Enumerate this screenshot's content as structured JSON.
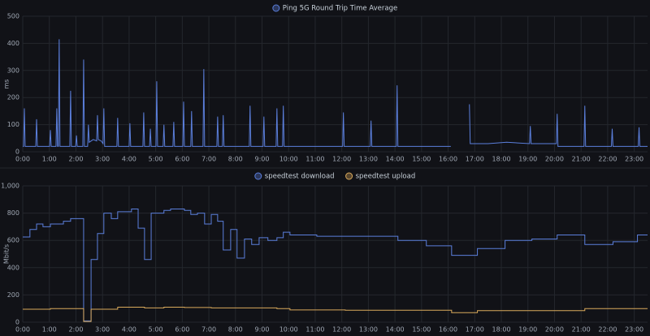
{
  "chart_data": [
    {
      "type": "line",
      "ylabel": "ms",
      "grid": true,
      "legend": "top",
      "xlim": [
        0,
        23.5
      ],
      "ylim": [
        0,
        500
      ],
      "yticks": [
        0,
        100,
        200,
        300,
        400,
        500
      ],
      "xticks": [
        {
          "value": 0,
          "label": "0:00"
        },
        {
          "value": 1,
          "label": "1:00"
        },
        {
          "value": 2,
          "label": "2:00"
        },
        {
          "value": 3,
          "label": "3:00"
        },
        {
          "value": 4,
          "label": "4:00"
        },
        {
          "value": 5,
          "label": "5:00"
        },
        {
          "value": 6,
          "label": "6:00"
        },
        {
          "value": 7,
          "label": "7:00"
        },
        {
          "value": 8,
          "label": "8:00"
        },
        {
          "value": 9,
          "label": "9:00"
        },
        {
          "value": 10,
          "label": "10:00"
        },
        {
          "value": 11,
          "label": "11:00"
        },
        {
          "value": 12,
          "label": "12:00"
        },
        {
          "value": 13,
          "label": "13:00"
        },
        {
          "value": 14,
          "label": "14:00"
        },
        {
          "value": 15,
          "label": "15:00"
        },
        {
          "value": 16,
          "label": "16:00"
        },
        {
          "value": 17,
          "label": "17:00"
        },
        {
          "value": 18,
          "label": "18:00"
        },
        {
          "value": 19,
          "label": "19:00"
        },
        {
          "value": 20,
          "label": "20:00"
        },
        {
          "value": 21,
          "label": "21:00"
        },
        {
          "value": 22,
          "label": "22:00"
        },
        {
          "value": 23,
          "label": "23:00"
        }
      ],
      "series": [
        {
          "name": "Ping 5G Round Trip Time Average",
          "color": "#5b7fdc",
          "x": [
            0,
            0.03,
            0.06,
            0.09,
            0.49,
            0.52,
            0.55,
            1.01,
            1.04,
            1.07,
            1.25,
            1.28,
            1.31,
            1.34,
            1.37,
            1.4,
            1.77,
            1.8,
            1.83,
            1.99,
            2.02,
            2.05,
            2.26,
            2.29,
            2.32,
            2.44,
            2.47,
            2.5,
            2.65,
            2.78,
            2.81,
            2.84,
            2.95,
            3.02,
            3.05,
            3.08,
            3.54,
            3.57,
            3.6,
            4.0,
            4.03,
            4.06,
            4.52,
            4.55,
            4.58,
            4.77,
            4.8,
            4.83,
            5.01,
            5.04,
            5.07,
            5.28,
            5.31,
            5.34,
            5.65,
            5.68,
            5.71,
            6.02,
            6.05,
            6.08,
            6.32,
            6.35,
            6.38,
            6.78,
            6.81,
            6.84,
            7.3,
            7.33,
            7.36,
            7.51,
            7.54,
            7.57,
            8.52,
            8.55,
            8.58,
            9.04,
            9.07,
            9.1,
            9.53,
            9.56,
            9.59,
            9.77,
            9.8,
            9.83,
            12.03,
            12.06,
            12.09,
            13.07,
            13.1,
            13.13,
            14.05,
            14.08,
            14.11,
            16.1,
            16.4,
            16.8,
            16.83,
            17.5,
            18.2,
            19.06,
            19.09,
            19.12,
            20.07,
            20.1,
            20.13,
            21.11,
            21.14,
            21.17,
            22.14,
            22.17,
            22.2,
            23.15,
            23.18,
            23.21,
            23.5
          ],
          "values": [
            20,
            20,
            160,
            20,
            20,
            120,
            20,
            20,
            80,
            20,
            20,
            160,
            20,
            20,
            415,
            20,
            20,
            225,
            20,
            20,
            60,
            20,
            20,
            340,
            20,
            20,
            100,
            35,
            45,
            40,
            135,
            45,
            40,
            30,
            160,
            20,
            20,
            125,
            20,
            20,
            105,
            20,
            20,
            145,
            20,
            20,
            85,
            20,
            20,
            260,
            20,
            20,
            100,
            20,
            20,
            110,
            20,
            20,
            185,
            20,
            20,
            150,
            20,
            20,
            305,
            20,
            20,
            130,
            20,
            20,
            135,
            20,
            20,
            170,
            20,
            20,
            130,
            20,
            20,
            160,
            20,
            20,
            170,
            20,
            20,
            145,
            20,
            20,
            115,
            20,
            20,
            245,
            20,
            20,
            null,
            175,
            30,
            30,
            35,
            30,
            95,
            30,
            30,
            140,
            20,
            20,
            170,
            20,
            20,
            85,
            20,
            20,
            90,
            20,
            20
          ]
        }
      ]
    },
    {
      "type": "line",
      "step": true,
      "ylabel": "Mbit/s",
      "grid": true,
      "legend": "top",
      "xlim": [
        0,
        23.5
      ],
      "ylim": [
        0,
        1000
      ],
      "yticks": [
        0,
        200,
        400,
        600,
        800,
        {
          "value": 1000,
          "label": "1,000"
        }
      ],
      "xticks": [
        {
          "value": 0,
          "label": "0:00"
        },
        {
          "value": 1,
          "label": "1:00"
        },
        {
          "value": 2,
          "label": "2:00"
        },
        {
          "value": 3,
          "label": "3:00"
        },
        {
          "value": 4,
          "label": "4:00"
        },
        {
          "value": 5,
          "label": "5:00"
        },
        {
          "value": 6,
          "label": "6:00"
        },
        {
          "value": 7,
          "label": "7:00"
        },
        {
          "value": 8,
          "label": "8:00"
        },
        {
          "value": 9,
          "label": "9:00"
        },
        {
          "value": 10,
          "label": "10:00"
        },
        {
          "value": 11,
          "label": "11:00"
        },
        {
          "value": 12,
          "label": "12:00"
        },
        {
          "value": 13,
          "label": "13:00"
        },
        {
          "value": 14,
          "label": "14:00"
        },
        {
          "value": 15,
          "label": "15:00"
        },
        {
          "value": 16,
          "label": "16:00"
        },
        {
          "value": 17,
          "label": "17:00"
        },
        {
          "value": 18,
          "label": "18:00"
        },
        {
          "value": 19,
          "label": "19:00"
        },
        {
          "value": 20,
          "label": "20:00"
        },
        {
          "value": 21,
          "label": "21:00"
        },
        {
          "value": 22,
          "label": "22:00"
        },
        {
          "value": 23,
          "label": "23:00"
        }
      ],
      "series": [
        {
          "name": "speedtest download",
          "color": "#5b7fdc",
          "x": [
            0,
            0.27,
            0.52,
            0.76,
            1.04,
            1.53,
            1.8,
            2.29,
            2.57,
            2.81,
            3.05,
            3.33,
            3.57,
            4.09,
            4.34,
            4.58,
            4.83,
            5.31,
            5.56,
            6.08,
            6.32,
            6.57,
            6.84,
            7.09,
            7.33,
            7.54,
            7.82,
            8.06,
            8.34,
            8.61,
            8.89,
            9.22,
            9.56,
            9.8,
            10.05,
            11.06,
            12.13,
            14.11,
            15.18,
            16.13,
            17.1,
            18.14,
            19.15,
            20.1,
            21.14,
            22.2,
            23.12,
            23.5
          ],
          "values": [
            625,
            680,
            720,
            700,
            720,
            740,
            760,
            10,
            460,
            650,
            800,
            760,
            810,
            830,
            690,
            460,
            800,
            820,
            830,
            820,
            790,
            800,
            720,
            790,
            740,
            530,
            680,
            470,
            610,
            570,
            620,
            600,
            620,
            660,
            640,
            630,
            630,
            600,
            560,
            490,
            540,
            600,
            610,
            640,
            570,
            590,
            640,
            640
          ]
        },
        {
          "name": "speedtest upload",
          "color": "#d9a95b",
          "x": [
            0,
            1.04,
            2.29,
            2.57,
            3.57,
            4.58,
            5.31,
            6.08,
            7.09,
            9.56,
            10.05,
            12.13,
            15.18,
            16.13,
            17.1,
            20.1,
            21.14,
            23.5
          ],
          "values": [
            95,
            100,
            5,
            95,
            110,
            105,
            110,
            108,
            105,
            100,
            90,
            88,
            88,
            70,
            85,
            85,
            100,
            100
          ]
        }
      ]
    }
  ]
}
